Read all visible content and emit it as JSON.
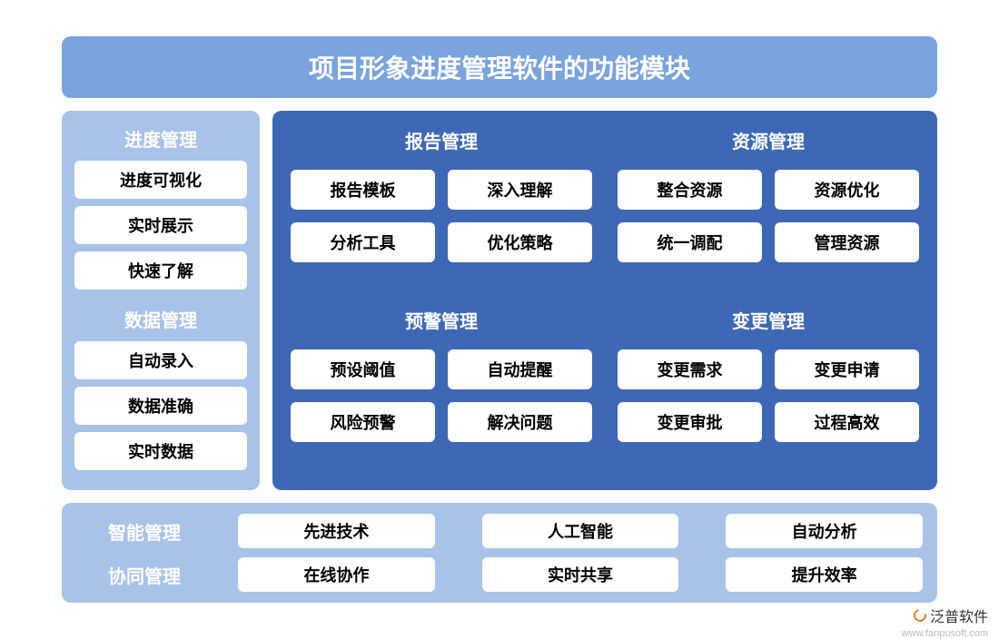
{
  "title": "项目形象进度管理软件的功能模块",
  "colors": {
    "title_bg": "#7ba3dd",
    "left_bg": "#a9c2e8",
    "right_bg": "#3e68b6",
    "bottom_bg": "#a9c2e8",
    "item_bg": "#ffffff",
    "heading_text": "#ffffff",
    "item_text": "#000000"
  },
  "left": {
    "group1": {
      "heading": "进度管理",
      "items": [
        "进度可视化",
        "实时展示",
        "快速了解"
      ]
    },
    "group2": {
      "heading": "数据管理",
      "items": [
        "自动录入",
        "数据准确",
        "实时数据"
      ]
    }
  },
  "right": {
    "g1": {
      "heading": "报告管理",
      "items": [
        "报告模板",
        "深入理解",
        "分析工具",
        "优化策略"
      ]
    },
    "g2": {
      "heading": "资源管理",
      "items": [
        "整合资源",
        "资源优化",
        "统一调配",
        "管理资源"
      ]
    },
    "g3": {
      "heading": "预警管理",
      "items": [
        "预设阈值",
        "自动提醒",
        "风险预警",
        "解决问题"
      ]
    },
    "g4": {
      "heading": "变更管理",
      "items": [
        "变更需求",
        "变更申请",
        "变更审批",
        "过程高效"
      ]
    }
  },
  "bottom": {
    "row1": {
      "label": "智能管理",
      "items": [
        "先进技术",
        "人工智能",
        "自动分析"
      ]
    },
    "row2": {
      "label": "协同管理",
      "items": [
        "在线协作",
        "实时共享",
        "提升效率"
      ]
    }
  },
  "watermark": {
    "brand": "泛普软件",
    "url": "www.fanpusoft.com"
  }
}
